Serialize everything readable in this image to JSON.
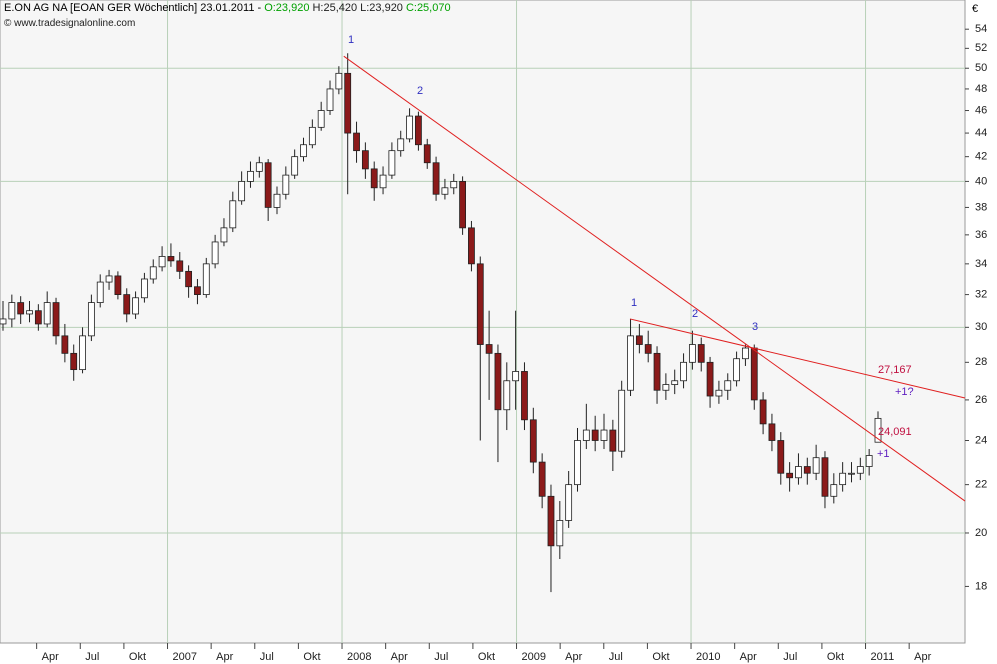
{
  "chart_data": {
    "type": "candlestick",
    "title": "E.ON AG NA [EOAN GER  Wöchentlich] 23.01.2011 -",
    "quote_parts": [
      {
        "text": "O:23,920",
        "color": "#00a000"
      },
      {
        "text": "H:25,420",
        "color": "#202020"
      },
      {
        "text": "L:23,920",
        "color": "#202020"
      },
      {
        "text": "C:25,070",
        "color": "#00a000"
      }
    ],
    "watermark": "© www.tradesignalonline.com",
    "y_unit": "€",
    "log_scale": true,
    "ylim": [
      16.1,
      57.2
    ],
    "yticks": [
      18,
      20,
      22,
      24,
      26,
      28,
      30,
      32,
      34,
      36,
      38,
      40,
      42,
      44,
      46,
      48,
      50,
      52,
      54
    ],
    "ygrid": [
      20,
      30,
      40,
      50
    ],
    "xlim": [
      2006.04,
      2011.57
    ],
    "xticks": [
      {
        "value": 2006.25,
        "label": "Apr"
      },
      {
        "value": 2006.5,
        "label": "Jul"
      },
      {
        "value": 2006.75,
        "label": "Okt"
      },
      2007,
      {
        "value": 2007.25,
        "label": "Apr"
      },
      {
        "value": 2007.5,
        "label": "Jul"
      },
      {
        "value": 2007.75,
        "label": "Okt"
      },
      2008,
      {
        "value": 2008.25,
        "label": "Apr"
      },
      {
        "value": 2008.5,
        "label": "Jul"
      },
      {
        "value": 2008.75,
        "label": "Okt"
      },
      2009,
      {
        "value": 2009.25,
        "label": "Apr"
      },
      {
        "value": 2009.5,
        "label": "Jul"
      },
      {
        "value": 2009.75,
        "label": "Okt"
      },
      2010,
      {
        "value": 2010.25,
        "label": "Apr"
      },
      {
        "value": 2010.5,
        "label": "Jul"
      },
      {
        "value": 2010.75,
        "label": "Okt"
      },
      2011,
      {
        "value": 2011.25,
        "label": "Apr"
      }
    ],
    "xgrid": [
      2007,
      2008,
      2009,
      2010,
      2011
    ],
    "up_color": "#ffffff",
    "down_color": "#8b1a1a",
    "ohlc": [
      [
        30.2,
        31.6,
        29.8,
        30.5
      ],
      [
        30.5,
        32,
        30,
        31.5
      ],
      [
        31.5,
        31.9,
        30.2,
        30.8
      ],
      [
        30.8,
        31.6,
        30.3,
        31
      ],
      [
        31,
        31.4,
        29.8,
        30.2
      ],
      [
        30.2,
        32.2,
        30,
        31.5
      ],
      [
        31.5,
        31.8,
        29,
        29.5
      ],
      [
        29.5,
        30.2,
        28,
        28.5
      ],
      [
        28.5,
        29,
        27,
        27.6
      ],
      [
        27.6,
        30,
        27.4,
        29.5
      ],
      [
        29.5,
        32,
        29.2,
        31.5
      ],
      [
        31.5,
        33.3,
        31.2,
        32.8
      ],
      [
        32.8,
        33.6,
        32.3,
        33.2
      ],
      [
        33.2,
        33.5,
        31.7,
        32
      ],
      [
        32,
        32.4,
        30.3,
        30.8
      ],
      [
        30.8,
        32.2,
        30.5,
        31.8
      ],
      [
        31.8,
        33.4,
        31.5,
        33
      ],
      [
        33,
        34.3,
        32.7,
        33.8
      ],
      [
        33.8,
        35.2,
        33.5,
        34.5
      ],
      [
        34.5,
        35.4,
        33.8,
        34.2
      ],
      [
        34.2,
        34.8,
        33,
        33.5
      ],
      [
        33.5,
        33.9,
        31.8,
        32.5
      ],
      [
        32.5,
        33,
        31.4,
        32
      ],
      [
        32,
        34.4,
        31.8,
        34
      ],
      [
        34,
        36,
        33.7,
        35.5
      ],
      [
        35.5,
        37.2,
        35.2,
        36.5
      ],
      [
        36.5,
        39.2,
        36.2,
        38.5
      ],
      [
        38.5,
        40.8,
        38.2,
        40
      ],
      [
        40,
        41.6,
        39.5,
        40.8
      ],
      [
        40.8,
        42,
        40.3,
        41.5
      ],
      [
        41.5,
        41.8,
        37,
        38
      ],
      [
        38,
        39.6,
        37.5,
        39
      ],
      [
        39,
        41.2,
        38.6,
        40.5
      ],
      [
        40.5,
        42.6,
        40.2,
        42
      ],
      [
        42,
        43.6,
        41.6,
        43
      ],
      [
        43,
        45.2,
        42.7,
        44.5
      ],
      [
        44.5,
        46.8,
        44.2,
        46
      ],
      [
        46,
        48.8,
        45.6,
        48
      ],
      [
        48,
        50.2,
        47.5,
        49.5
      ],
      [
        49.5,
        51.5,
        39,
        44
      ],
      [
        44,
        45,
        41.5,
        42.5
      ],
      [
        42.5,
        43.2,
        40.2,
        41
      ],
      [
        41,
        41.6,
        38.5,
        39.5
      ],
      [
        39.5,
        41.2,
        39,
        40.5
      ],
      [
        40.5,
        43.2,
        40.2,
        42.5
      ],
      [
        42.5,
        44.2,
        42,
        43.5
      ],
      [
        43.5,
        46.2,
        43.2,
        45.5
      ],
      [
        45.5,
        45.9,
        42.5,
        43
      ],
      [
        43,
        43.5,
        41,
        41.5
      ],
      [
        41.5,
        42,
        38.5,
        39
      ],
      [
        39,
        40.2,
        38.6,
        39.5
      ],
      [
        39.5,
        40.6,
        39,
        40
      ],
      [
        40,
        40.4,
        36,
        36.5
      ],
      [
        36.5,
        37,
        33.5,
        34
      ],
      [
        34,
        34.5,
        24,
        29
      ],
      [
        29,
        31,
        26,
        28.5
      ],
      [
        28.5,
        29,
        23,
        25.5
      ],
      [
        25.5,
        28,
        24.5,
        27
      ],
      [
        27,
        31,
        25.5,
        27.5
      ],
      [
        27.5,
        28,
        24.5,
        25
      ],
      [
        25,
        25.6,
        22.5,
        23
      ],
      [
        23,
        23.4,
        21,
        21.5
      ],
      [
        21.5,
        22,
        17.8,
        19.5
      ],
      [
        19.5,
        21.3,
        19,
        20.5
      ],
      [
        20.5,
        22.6,
        20.2,
        22
      ],
      [
        22,
        24.6,
        21.7,
        24
      ],
      [
        24,
        25.8,
        23.6,
        24.5
      ],
      [
        24.5,
        25.2,
        23.5,
        24
      ],
      [
        24,
        25.3,
        23.6,
        24.5
      ],
      [
        24.5,
        25,
        22.6,
        23.5
      ],
      [
        23.5,
        27,
        23.2,
        26.5
      ],
      [
        26.5,
        30.5,
        26.2,
        29.5
      ],
      [
        29.5,
        30.2,
        28.5,
        29
      ],
      [
        29,
        29.8,
        28,
        28.5
      ],
      [
        28.5,
        28.9,
        25.8,
        26.5
      ],
      [
        26.5,
        27.4,
        26,
        26.8
      ],
      [
        26.8,
        27.6,
        26.3,
        27
      ],
      [
        27,
        28.5,
        26.6,
        28
      ],
      [
        28,
        29.8,
        27.6,
        29
      ],
      [
        29,
        29.4,
        27.5,
        28
      ],
      [
        28,
        28.3,
        25.6,
        26.2
      ],
      [
        26.2,
        27,
        25.8,
        26.5
      ],
      [
        26.5,
        27.4,
        26,
        27
      ],
      [
        27,
        28.6,
        26.7,
        28.2
      ],
      [
        28.2,
        29,
        27.8,
        28.8
      ],
      [
        28.8,
        29,
        25.5,
        26
      ],
      [
        26,
        26.4,
        24.3,
        24.8
      ],
      [
        24.8,
        25.3,
        23.5,
        24
      ],
      [
        24,
        24.4,
        22,
        22.5
      ],
      [
        22.5,
        23,
        21.7,
        22.3
      ],
      [
        22.3,
        23.4,
        22,
        22.8
      ],
      [
        22.8,
        23.2,
        22,
        22.5
      ],
      [
        22.5,
        23.8,
        22.2,
        23.2
      ],
      [
        23.2,
        23.5,
        21,
        21.5
      ],
      [
        21.5,
        22.5,
        21.2,
        22
      ],
      [
        22,
        23,
        21.7,
        22.5
      ],
      [
        22.5,
        23,
        22.1,
        22.5
      ],
      [
        22.5,
        23.2,
        22.2,
        22.8
      ],
      [
        22.8,
        23.6,
        22.4,
        23.3
      ],
      [
        23.92,
        25.42,
        23.92,
        25.07
      ]
    ],
    "trend_lines": [
      {
        "color": "#e02020",
        "x": [
          2008.01,
          2011.57
        ],
        "y": [
          51.2,
          21.3
        ]
      },
      {
        "color": "#e02020",
        "x": [
          2009.65,
          2011.57
        ],
        "y": [
          30.5,
          26.1
        ]
      }
    ],
    "annotations": [
      {
        "text": "1",
        "color": "#3030c0"
      },
      {
        "text": "2",
        "color": "#3030c0"
      },
      {
        "text": "1",
        "color": "#3030c0"
      },
      {
        "text": "2",
        "color": "#3030c0"
      },
      {
        "text": "3",
        "color": "#3030c0"
      },
      {
        "text": "27,167",
        "color": "#c01040"
      },
      {
        "text": "+1?",
        "color": "#6020c0"
      },
      {
        "text": "24,091",
        "color": "#c01040"
      },
      {
        "text": "+1",
        "color": "#6020c0"
      }
    ]
  }
}
